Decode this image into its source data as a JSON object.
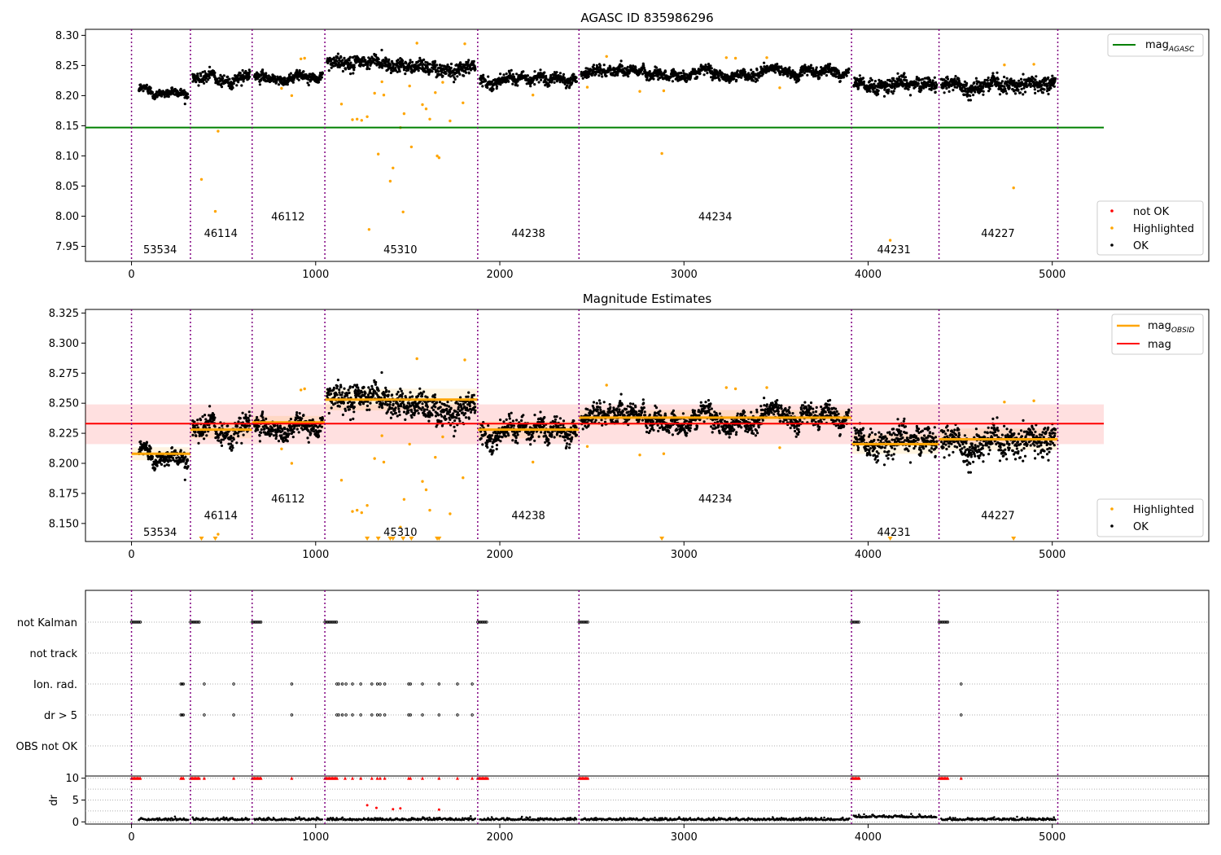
{
  "chart_data": [
    {
      "type": "scatter",
      "title": "AGASC ID 835986296",
      "xlim": [
        -250,
        5850
      ],
      "ylim": [
        7.925,
        8.31
      ],
      "x_ticks": [
        0,
        1000,
        2000,
        3000,
        4000,
        5000
      ],
      "y_ticks": [
        7.95,
        8.0,
        8.05,
        8.1,
        8.15,
        8.2,
        8.25,
        8.3
      ],
      "y_tick_labels": [
        "7.95",
        "8.00",
        "8.05",
        "8.10",
        "8.15",
        "8.20",
        "8.25",
        "8.30"
      ],
      "obs_boundaries": [
        0,
        320,
        655,
        1050,
        1880,
        2430,
        3910,
        4385,
        5030
      ],
      "observations": [
        {
          "obsid": "53534",
          "start": 0,
          "end": 320,
          "mean": 8.208,
          "std": 0.006,
          "label_x": 155,
          "label_y": 7.945
        },
        {
          "obsid": "46114",
          "start": 320,
          "end": 655,
          "mean": 8.228,
          "std": 0.008,
          "label_x": 485,
          "label_y": 7.972
        },
        {
          "obsid": "46112",
          "start": 655,
          "end": 1050,
          "mean": 8.234,
          "std": 0.006,
          "label_x": 850,
          "label_y": 8.0
        },
        {
          "obsid": "45310",
          "start": 1050,
          "end": 1880,
          "mean": 8.253,
          "std": 0.01,
          "label_x": 1460,
          "label_y": 7.945
        },
        {
          "obsid": "44238",
          "start": 1880,
          "end": 2430,
          "mean": 8.228,
          "std": 0.008,
          "label_x": 2155,
          "label_y": 7.972
        },
        {
          "obsid": "44234",
          "start": 2430,
          "end": 3910,
          "mean": 8.238,
          "std": 0.007,
          "label_x": 3170,
          "label_y": 8.0
        },
        {
          "obsid": "44231",
          "start": 3910,
          "end": 4385,
          "mean": 8.216,
          "std": 0.009,
          "label_x": 4140,
          "label_y": 7.945
        },
        {
          "obsid": "44227",
          "start": 4385,
          "end": 5030,
          "mean": 8.22,
          "std": 0.01,
          "label_x": 4705,
          "label_y": 7.972
        }
      ],
      "agasc_mag": 8.147,
      "agasc_line_x": [
        -250,
        5280
      ],
      "highlighted_points": [
        [
          380,
          8.061
        ],
        [
          455,
          8.008
        ],
        [
          470,
          8.141
        ],
        [
          815,
          8.212
        ],
        [
          870,
          8.2
        ],
        [
          920,
          8.261
        ],
        [
          940,
          8.262
        ],
        [
          1140,
          8.186
        ],
        [
          1200,
          8.16
        ],
        [
          1225,
          8.161
        ],
        [
          1250,
          8.159
        ],
        [
          1280,
          8.165
        ],
        [
          1290,
          7.978
        ],
        [
          1320,
          8.204
        ],
        [
          1340,
          8.103
        ],
        [
          1360,
          8.223
        ],
        [
          1370,
          8.201
        ],
        [
          1405,
          8.058
        ],
        [
          1420,
          8.08
        ],
        [
          1460,
          8.147
        ],
        [
          1475,
          8.007
        ],
        [
          1480,
          8.17
        ],
        [
          1510,
          8.216
        ],
        [
          1520,
          8.115
        ],
        [
          1550,
          8.287
        ],
        [
          1580,
          8.185
        ],
        [
          1600,
          8.178
        ],
        [
          1620,
          8.161
        ],
        [
          1650,
          8.205
        ],
        [
          1660,
          8.1
        ],
        [
          1670,
          8.097
        ],
        [
          1690,
          8.222
        ],
        [
          1730,
          8.158
        ],
        [
          1800,
          8.188
        ],
        [
          1810,
          8.286
        ],
        [
          2180,
          8.201
        ],
        [
          2475,
          8.214
        ],
        [
          2580,
          8.265
        ],
        [
          2760,
          8.207
        ],
        [
          2880,
          8.104
        ],
        [
          2890,
          8.208
        ],
        [
          3230,
          8.263
        ],
        [
          3280,
          8.262
        ],
        [
          3450,
          8.263
        ],
        [
          3520,
          8.213
        ],
        [
          4120,
          7.96
        ],
        [
          4740,
          8.251
        ],
        [
          4790,
          8.047
        ],
        [
          4900,
          8.252
        ]
      ],
      "legend_top": [
        {
          "label": "mag",
          "subscript": "AGASC",
          "color": "#008000"
        }
      ],
      "legend_bottom": [
        {
          "label": "not OK",
          "color": "#ff0000"
        },
        {
          "label": "Highlighted",
          "color": "#ffa500"
        },
        {
          "label": "OK",
          "color": "#000000"
        }
      ]
    },
    {
      "type": "scatter",
      "title": "Magnitude Estimates",
      "xlim": [
        -250,
        5850
      ],
      "ylim": [
        8.135,
        8.328
      ],
      "x_ticks": [
        0,
        1000,
        2000,
        3000,
        4000,
        5000
      ],
      "y_ticks": [
        8.15,
        8.175,
        8.2,
        8.225,
        8.25,
        8.275,
        8.3,
        8.325
      ],
      "y_tick_labels": [
        "8.150",
        "8.175",
        "8.200",
        "8.225",
        "8.250",
        "8.275",
        "8.300",
        "8.325"
      ],
      "obsid_label_y": [
        8.143,
        8.157,
        8.171,
        8.143,
        8.157,
        8.171,
        8.143,
        8.157
      ],
      "mag": 8.233,
      "mag_band": [
        8.216,
        8.249
      ],
      "mag_line_x": [
        -250,
        5280
      ],
      "lower_limit_markers_x": [
        380,
        455,
        1280,
        1340,
        1405,
        1420,
        1475,
        1520,
        1660,
        1670,
        2880,
        4120,
        4790
      ],
      "legend_top": [
        {
          "label": "mag",
          "subscript": "OBSID",
          "color": "#ffa500"
        },
        {
          "label": "mag",
          "subscript": "",
          "color": "#ff0000"
        }
      ],
      "legend_bottom": [
        {
          "label": "Highlighted",
          "color": "#ffa500"
        },
        {
          "label": "OK",
          "color": "#000000"
        }
      ]
    },
    {
      "type": "scatter",
      "title": "",
      "xlim": [
        -250,
        5850
      ],
      "x_ticks": [
        0,
        1000,
        2000,
        3000,
        4000,
        5000
      ],
      "flag_rows": [
        "not Kalman",
        "not track",
        "Ion. rad.",
        "dr > 5",
        "OBS not OK"
      ],
      "flags": {
        "not Kalman": [
          [
            0,
            50
          ],
          [
            320,
            370
          ],
          [
            655,
            705
          ],
          [
            1050,
            1120
          ],
          [
            1880,
            1935
          ],
          [
            2430,
            2480
          ],
          [
            3910,
            3955
          ],
          [
            4385,
            4435
          ]
        ],
        "not track": [],
        "Ion. rad.": [
          268,
          275,
          282,
          395,
          555,
          870,
          1115,
          1125,
          1145,
          1165,
          1200,
          1245,
          1305,
          1335,
          1350,
          1375,
          1505,
          1515,
          1580,
          1670,
          1770,
          1850,
          4505
        ],
        "dr > 5": [
          268,
          275,
          282,
          395,
          555,
          870,
          1115,
          1125,
          1145,
          1165,
          1200,
          1245,
          1305,
          1335,
          1350,
          1375,
          1505,
          1515,
          1580,
          1670,
          1770,
          1850,
          4505
        ],
        "OBS not OK": []
      },
      "dr_ylim": [
        -0.5,
        10.5
      ],
      "dr_ticks": [
        0,
        5,
        10
      ],
      "dr_clip_red_x": [
        268,
        275,
        282,
        395,
        555,
        870,
        1160,
        1200,
        1245,
        1305,
        1335,
        1350,
        1375,
        1505,
        1515,
        1580,
        1670,
        1770,
        1850,
        4505
      ],
      "dr_red_points": [
        [
          1280,
          3.8
        ],
        [
          1330,
          3.2
        ],
        [
          1420,
          2.9
        ],
        [
          1460,
          3.1
        ],
        [
          1670,
          2.8
        ]
      ],
      "dr_ylabel": "dr"
    }
  ]
}
